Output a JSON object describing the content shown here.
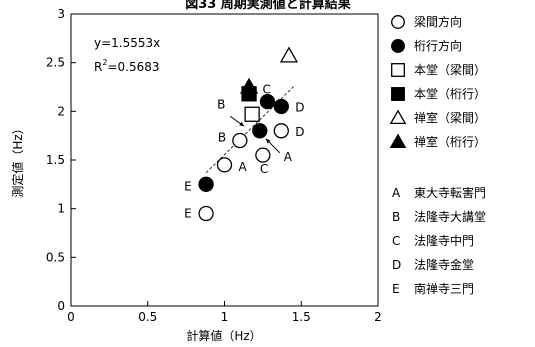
{
  "chart_data": {
    "type": "scatter",
    "title": "図33 周期実測値と計算結果",
    "xlabel": "計算値（Hz）",
    "ylabel": "測定値（Hz）",
    "xlim": [
      0,
      2
    ],
    "ylim": [
      0,
      3
    ],
    "xticks": [
      0,
      0.5,
      1,
      1.5,
      2
    ],
    "yticks": [
      0,
      0.5,
      1,
      1.5,
      2,
      2.5,
      3
    ],
    "xtick_labels": [
      "0",
      "0.5",
      "1",
      "1.5",
      "2"
    ],
    "ytick_labels": [
      "0",
      "0.5",
      "1",
      "1.5",
      "2",
      "2.5",
      "3"
    ],
    "grid": false,
    "annotations": {
      "equation": "y=1.5553x",
      "r2_prefix": "R",
      "r2_sup": "2",
      "r2_suffix": "=0.5683"
    },
    "trendline": {
      "slope": 1.5553,
      "x_range": [
        0.88,
        1.45
      ],
      "style": "dashed"
    },
    "series": [
      {
        "name": "梁間方向",
        "marker": "circle-open",
        "points": [
          {
            "x": 0.88,
            "y": 0.95,
            "label": "E"
          },
          {
            "x": 1.0,
            "y": 1.45,
            "label": "A"
          },
          {
            "x": 1.1,
            "y": 1.7,
            "label": "B"
          },
          {
            "x": 1.25,
            "y": 1.55,
            "label": "C"
          },
          {
            "x": 1.37,
            "y": 1.8,
            "label": "D"
          }
        ]
      },
      {
        "name": "桁行方向",
        "marker": "circle-filled",
        "points": [
          {
            "x": 0.88,
            "y": 1.25,
            "label": "E"
          },
          {
            "x": 1.23,
            "y": 1.8,
            "label": "A"
          },
          {
            "x": 1.28,
            "y": 2.1,
            "label": "C"
          },
          {
            "x": 1.37,
            "y": 2.05,
            "label": "D"
          }
        ]
      },
      {
        "name": "本堂（梁間）",
        "marker": "square-open",
        "points": [
          {
            "x": 1.18,
            "y": 1.97,
            "label": "B"
          }
        ]
      },
      {
        "name": "本堂（桁行）",
        "marker": "square-filled",
        "points": [
          {
            "x": 1.16,
            "y": 2.18,
            "label": ""
          }
        ]
      },
      {
        "name": "禅室（梁間）",
        "marker": "triangle-open",
        "points": [
          {
            "x": 1.42,
            "y": 2.57,
            "label": ""
          }
        ]
      },
      {
        "name": "禅室（桁行）",
        "marker": "triangle-filled",
        "points": [
          {
            "x": 1.16,
            "y": 2.25,
            "label": ""
          }
        ]
      }
    ],
    "legend_position": "right",
    "building_legend": [
      {
        "letter": "A",
        "name": "東大寺転害門"
      },
      {
        "letter": "B",
        "name": "法隆寺大講堂"
      },
      {
        "letter": "C",
        "name": "法隆寺中門"
      },
      {
        "letter": "D",
        "name": "法隆寺金堂"
      },
      {
        "letter": "E",
        "name": "南禅寺三門"
      }
    ]
  }
}
